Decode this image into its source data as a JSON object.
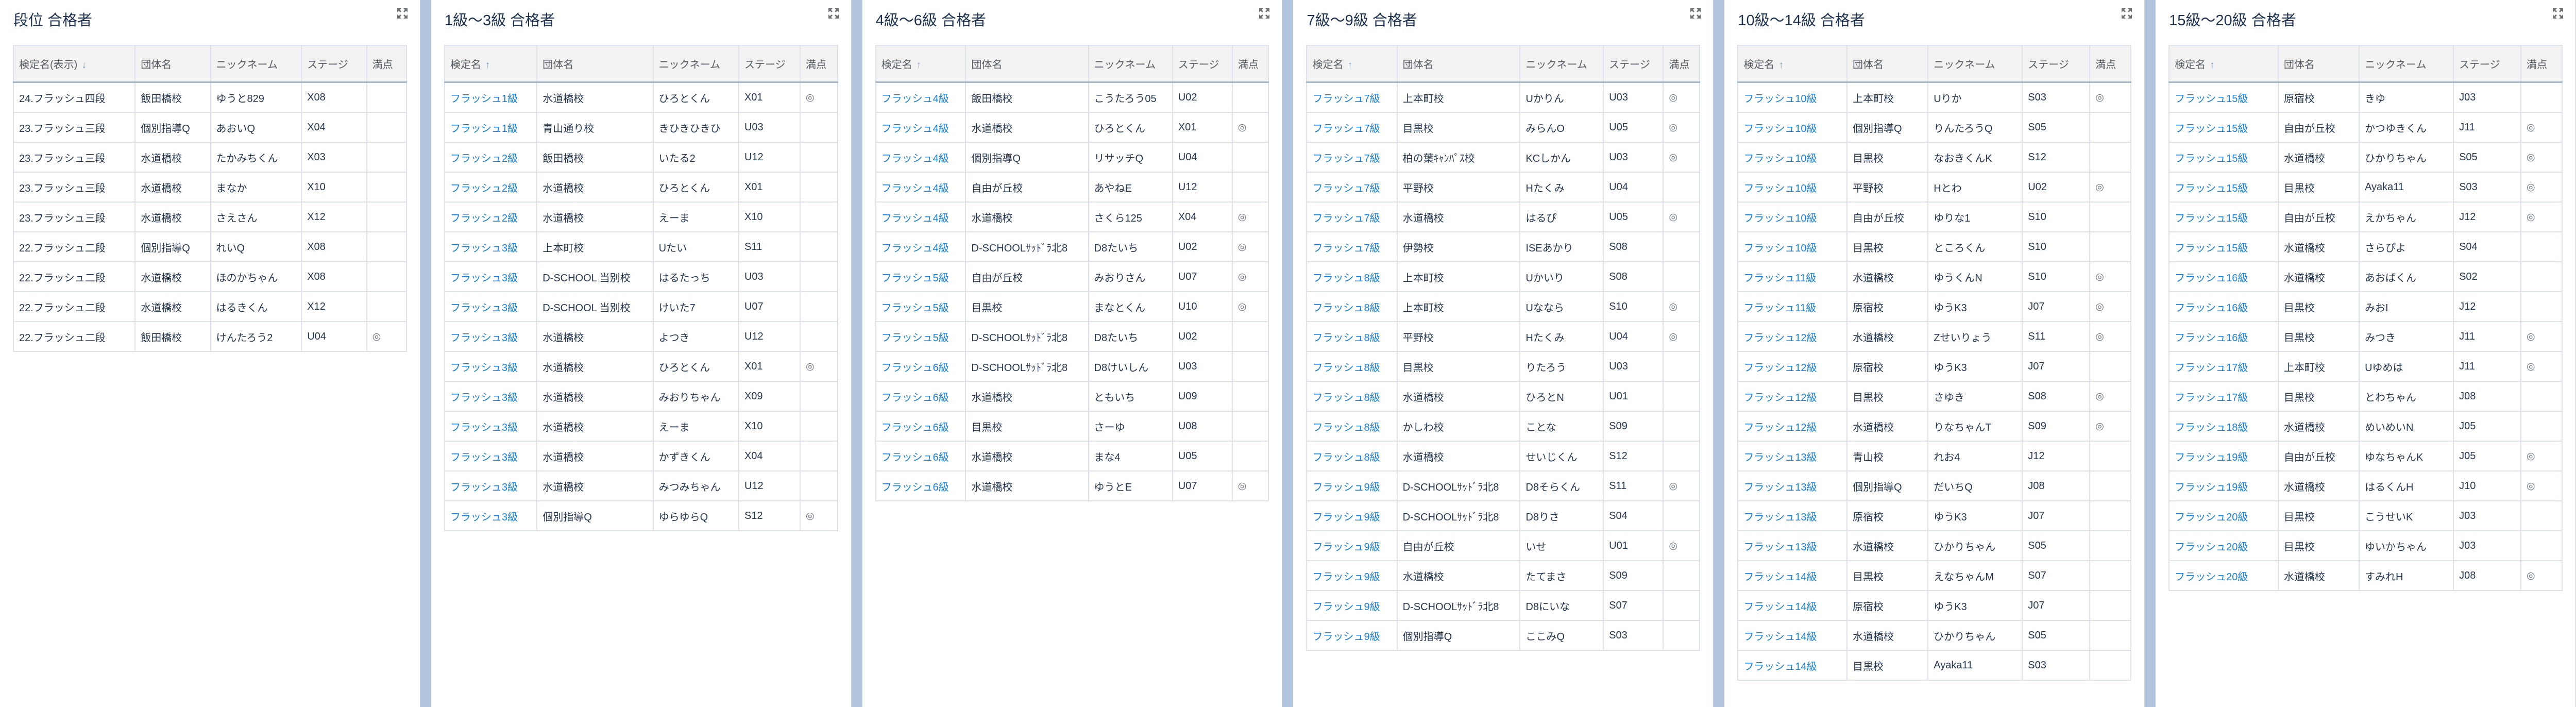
{
  "colors": {
    "background": "#b0c4de",
    "link": "#1a7fd4",
    "header_bg": "#f2f2f2",
    "title": "#1d3251"
  },
  "icons": {
    "expand": "expand-arrows-icon"
  },
  "panels": [
    {
      "title": "段位 合格者",
      "sort_arrow": "↓",
      "first_col_link": false,
      "headers": [
        "検定名(表示)",
        "団体名",
        "ニックネーム",
        "ステージ",
        "満点"
      ],
      "rows": [
        [
          "24.フラッシュ四段",
          "飯田橋校",
          "ゆうと829",
          "X08",
          ""
        ],
        [
          "23.フラッシュ三段",
          "個別指導Q",
          "あおいQ",
          "X04",
          ""
        ],
        [
          "23.フラッシュ三段",
          "水道橋校",
          "たかみちくん",
          "X03",
          ""
        ],
        [
          "23.フラッシュ三段",
          "水道橋校",
          "まなか",
          "X10",
          ""
        ],
        [
          "23.フラッシュ三段",
          "水道橋校",
          "さえさん",
          "X12",
          ""
        ],
        [
          "22.フラッシュ二段",
          "個別指導Q",
          "れいQ",
          "X08",
          ""
        ],
        [
          "22.フラッシュ二段",
          "水道橋校",
          "ほのかちゃん",
          "X08",
          ""
        ],
        [
          "22.フラッシュ二段",
          "水道橋校",
          "はるきくん",
          "X12",
          ""
        ],
        [
          "22.フラッシュ二段",
          "飯田橋校",
          "けんたろう2",
          "U04",
          "◎"
        ]
      ]
    },
    {
      "title": "1級～3級 合格者",
      "sort_arrow": "↑",
      "first_col_link": true,
      "headers": [
        "検定名",
        "団体名",
        "ニックネーム",
        "ステージ",
        "満点"
      ],
      "rows": [
        [
          "フラッシュ1級",
          "水道橋校",
          "ひろとくん",
          "X01",
          "◎"
        ],
        [
          "フラッシュ1級",
          "青山通り校",
          "きひきひきひ",
          "U03",
          ""
        ],
        [
          "フラッシュ2級",
          "飯田橋校",
          "いたる2",
          "U12",
          ""
        ],
        [
          "フラッシュ2級",
          "水道橋校",
          "ひろとくん",
          "X01",
          ""
        ],
        [
          "フラッシュ2級",
          "水道橋校",
          "えーま",
          "X10",
          ""
        ],
        [
          "フラッシュ3級",
          "上本町校",
          "Uたい",
          "S11",
          ""
        ],
        [
          "フラッシュ3級",
          "D-SCHOOL 当別校",
          "はるたっち",
          "U03",
          ""
        ],
        [
          "フラッシュ3級",
          "D-SCHOOL 当別校",
          "けいた7",
          "U07",
          ""
        ],
        [
          "フラッシュ3級",
          "水道橋校",
          "よつき",
          "U12",
          ""
        ],
        [
          "フラッシュ3級",
          "水道橋校",
          "ひろとくん",
          "X01",
          "◎"
        ],
        [
          "フラッシュ3級",
          "水道橋校",
          "みおりちゃん",
          "X09",
          ""
        ],
        [
          "フラッシュ3級",
          "水道橋校",
          "えーま",
          "X10",
          ""
        ],
        [
          "フラッシュ3級",
          "水道橋校",
          "かずきくん",
          "X04",
          ""
        ],
        [
          "フラッシュ3級",
          "水道橋校",
          "みつみちゃん",
          "U12",
          ""
        ],
        [
          "フラッシュ3級",
          "個別指導Q",
          "ゆらゆらQ",
          "S12",
          "◎"
        ]
      ]
    },
    {
      "title": "4級～6級 合格者",
      "sort_arrow": "↑",
      "first_col_link": true,
      "headers": [
        "検定名",
        "団体名",
        "ニックネーム",
        "ステージ",
        "満点"
      ],
      "rows": [
        [
          "フラッシュ4級",
          "飯田橋校",
          "こうたろう05",
          "U02",
          ""
        ],
        [
          "フラッシュ4級",
          "水道橋校",
          "ひろとくん",
          "X01",
          "◎"
        ],
        [
          "フラッシュ4級",
          "個別指導Q",
          "リサッチQ",
          "U04",
          ""
        ],
        [
          "フラッシュ4級",
          "自由が丘校",
          "あやねE",
          "U12",
          ""
        ],
        [
          "フラッシュ4級",
          "水道橋校",
          "さくら125",
          "X04",
          "◎"
        ],
        [
          "フラッシュ4級",
          "D-SCHOOLｻｯﾄﾞﾗ北8",
          "D8たいち",
          "U02",
          "◎"
        ],
        [
          "フラッシュ5級",
          "自由が丘校",
          "みおりさん",
          "U07",
          "◎"
        ],
        [
          "フラッシュ5級",
          "目黒校",
          "まなとくん",
          "U10",
          "◎"
        ],
        [
          "フラッシュ5級",
          "D-SCHOOLｻｯﾄﾞﾗ北8",
          "D8たいち",
          "U02",
          ""
        ],
        [
          "フラッシュ6級",
          "D-SCHOOLｻｯﾄﾞﾗ北8",
          "D8けいしん",
          "U03",
          ""
        ],
        [
          "フラッシュ6級",
          "水道橋校",
          "ともいち",
          "U09",
          ""
        ],
        [
          "フラッシュ6級",
          "目黒校",
          "さーゆ",
          "U08",
          ""
        ],
        [
          "フラッシュ6級",
          "水道橋校",
          "まな4",
          "U05",
          ""
        ],
        [
          "フラッシュ6級",
          "水道橋校",
          "ゆうとE",
          "U07",
          "◎"
        ]
      ]
    },
    {
      "title": "7級～9級 合格者",
      "sort_arrow": "↑",
      "first_col_link": true,
      "headers": [
        "検定名",
        "団体名",
        "ニックネーム",
        "ステージ",
        "満点"
      ],
      "rows": [
        [
          "フラッシュ7級",
          "上本町校",
          "Uかりん",
          "U03",
          "◎"
        ],
        [
          "フラッシュ7級",
          "目黒校",
          "みらんO",
          "U05",
          "◎"
        ],
        [
          "フラッシュ7級",
          "柏の葉ｷｬﾝﾊﾟｽ校",
          "KCしかん",
          "U03",
          "◎"
        ],
        [
          "フラッシュ7級",
          "平野校",
          "Hたくみ",
          "U04",
          ""
        ],
        [
          "フラッシュ7級",
          "水道橋校",
          "はるぴ",
          "U05",
          "◎"
        ],
        [
          "フラッシュ7級",
          "伊勢校",
          "ISEあかり",
          "S08",
          ""
        ],
        [
          "フラッシュ8級",
          "上本町校",
          "Uかいり",
          "S08",
          ""
        ],
        [
          "フラッシュ8級",
          "上本町校",
          "Uななら",
          "S10",
          "◎"
        ],
        [
          "フラッシュ8級",
          "平野校",
          "Hたくみ",
          "U04",
          "◎"
        ],
        [
          "フラッシュ8級",
          "目黒校",
          "りたろう",
          "U03",
          ""
        ],
        [
          "フラッシュ8級",
          "水道橋校",
          "ひろとN",
          "U01",
          ""
        ],
        [
          "フラッシュ8級",
          "かしわ校",
          "ことな",
          "S09",
          ""
        ],
        [
          "フラッシュ8級",
          "水道橋校",
          "せいじくん",
          "S12",
          ""
        ],
        [
          "フラッシュ9級",
          "D-SCHOOLｻｯﾄﾞﾗ北8",
          "D8そらくん",
          "S11",
          "◎"
        ],
        [
          "フラッシュ9級",
          "D-SCHOOLｻｯﾄﾞﾗ北8",
          "D8りさ",
          "S04",
          ""
        ],
        [
          "フラッシュ9級",
          "自由が丘校",
          "いせ",
          "U01",
          "◎"
        ],
        [
          "フラッシュ9級",
          "水道橋校",
          "たてまさ",
          "S09",
          ""
        ],
        [
          "フラッシュ9級",
          "D-SCHOOLｻｯﾄﾞﾗ北8",
          "D8にいな",
          "S07",
          ""
        ],
        [
          "フラッシュ9級",
          "個別指導Q",
          "ここみQ",
          "S03",
          ""
        ]
      ]
    },
    {
      "title": "10級～14級 合格者",
      "sort_arrow": "↑",
      "first_col_link": true,
      "headers": [
        "検定名",
        "団体名",
        "ニックネーム",
        "ステージ",
        "満点"
      ],
      "rows": [
        [
          "フラッシュ10級",
          "上本町校",
          "Uりか",
          "S03",
          "◎"
        ],
        [
          "フラッシュ10級",
          "個別指導Q",
          "りんたろうQ",
          "S05",
          ""
        ],
        [
          "フラッシュ10級",
          "目黒校",
          "なおきくんK",
          "S12",
          ""
        ],
        [
          "フラッシュ10級",
          "平野校",
          "Hとわ",
          "U02",
          "◎"
        ],
        [
          "フラッシュ10級",
          "自由が丘校",
          "ゆりな1",
          "S10",
          ""
        ],
        [
          "フラッシュ10級",
          "目黒校",
          "ところくん",
          "S10",
          ""
        ],
        [
          "フラッシュ11級",
          "水道橋校",
          "ゆうくんN",
          "S10",
          "◎"
        ],
        [
          "フラッシュ11級",
          "原宿校",
          "ゆうK3",
          "J07",
          "◎"
        ],
        [
          "フラッシュ12級",
          "水道橋校",
          "Zせいりょう",
          "S11",
          "◎"
        ],
        [
          "フラッシュ12級",
          "原宿校",
          "ゆうK3",
          "J07",
          ""
        ],
        [
          "フラッシュ12級",
          "目黒校",
          "さゆき",
          "S08",
          "◎"
        ],
        [
          "フラッシュ12級",
          "水道橋校",
          "りなちゃんT",
          "S09",
          "◎"
        ],
        [
          "フラッシュ13級",
          "青山校",
          "れお4",
          "J12",
          ""
        ],
        [
          "フラッシュ13級",
          "個別指導Q",
          "だいちQ",
          "J08",
          ""
        ],
        [
          "フラッシュ13級",
          "原宿校",
          "ゆうK3",
          "J07",
          ""
        ],
        [
          "フラッシュ13級",
          "水道橋校",
          "ひかりちゃん",
          "S05",
          ""
        ],
        [
          "フラッシュ14級",
          "目黒校",
          "えなちゃんM",
          "S07",
          ""
        ],
        [
          "フラッシュ14級",
          "原宿校",
          "ゆうK3",
          "J07",
          ""
        ],
        [
          "フラッシュ14級",
          "水道橋校",
          "ひかりちゃん",
          "S05",
          ""
        ],
        [
          "フラッシュ14級",
          "目黒校",
          "Ayaka11",
          "S03",
          ""
        ]
      ]
    },
    {
      "title": "15級～20級 合格者",
      "sort_arrow": "↑",
      "first_col_link": true,
      "headers": [
        "検定名",
        "団体名",
        "ニックネーム",
        "ステージ",
        "満点"
      ],
      "rows": [
        [
          "フラッシュ15級",
          "原宿校",
          "きゆ",
          "J03",
          ""
        ],
        [
          "フラッシュ15級",
          "自由が丘校",
          "かつゆきくん",
          "J11",
          "◎"
        ],
        [
          "フラッシュ15級",
          "水道橋校",
          "ひかりちゃん",
          "S05",
          "◎"
        ],
        [
          "フラッシュ15級",
          "目黒校",
          "Ayaka11",
          "S03",
          "◎"
        ],
        [
          "フラッシュ15級",
          "自由が丘校",
          "えかちゃん",
          "J12",
          "◎"
        ],
        [
          "フラッシュ15級",
          "水道橋校",
          "さらぴよ",
          "S04",
          ""
        ],
        [
          "フラッシュ16級",
          "水道橋校",
          "あおばくん",
          "S02",
          ""
        ],
        [
          "フラッシュ16級",
          "目黒校",
          "みおI",
          "J12",
          ""
        ],
        [
          "フラッシュ16級",
          "目黒校",
          "みつき",
          "J11",
          "◎"
        ],
        [
          "フラッシュ17級",
          "上本町校",
          "Uゆめは",
          "J11",
          "◎"
        ],
        [
          "フラッシュ17級",
          "目黒校",
          "とわちゃん",
          "J08",
          ""
        ],
        [
          "フラッシュ18級",
          "水道橋校",
          "めいめいN",
          "J05",
          ""
        ],
        [
          "フラッシュ19級",
          "自由が丘校",
          "ゆなちゃんK",
          "J05",
          "◎"
        ],
        [
          "フラッシュ19級",
          "水道橋校",
          "はるくんH",
          "J10",
          "◎"
        ],
        [
          "フラッシュ20級",
          "目黒校",
          "こうせいK",
          "J03",
          ""
        ],
        [
          "フラッシュ20級",
          "目黒校",
          "ゆいかちゃん",
          "J03",
          ""
        ],
        [
          "フラッシュ20級",
          "水道橋校",
          "すみれH",
          "J08",
          "◎"
        ]
      ]
    }
  ]
}
